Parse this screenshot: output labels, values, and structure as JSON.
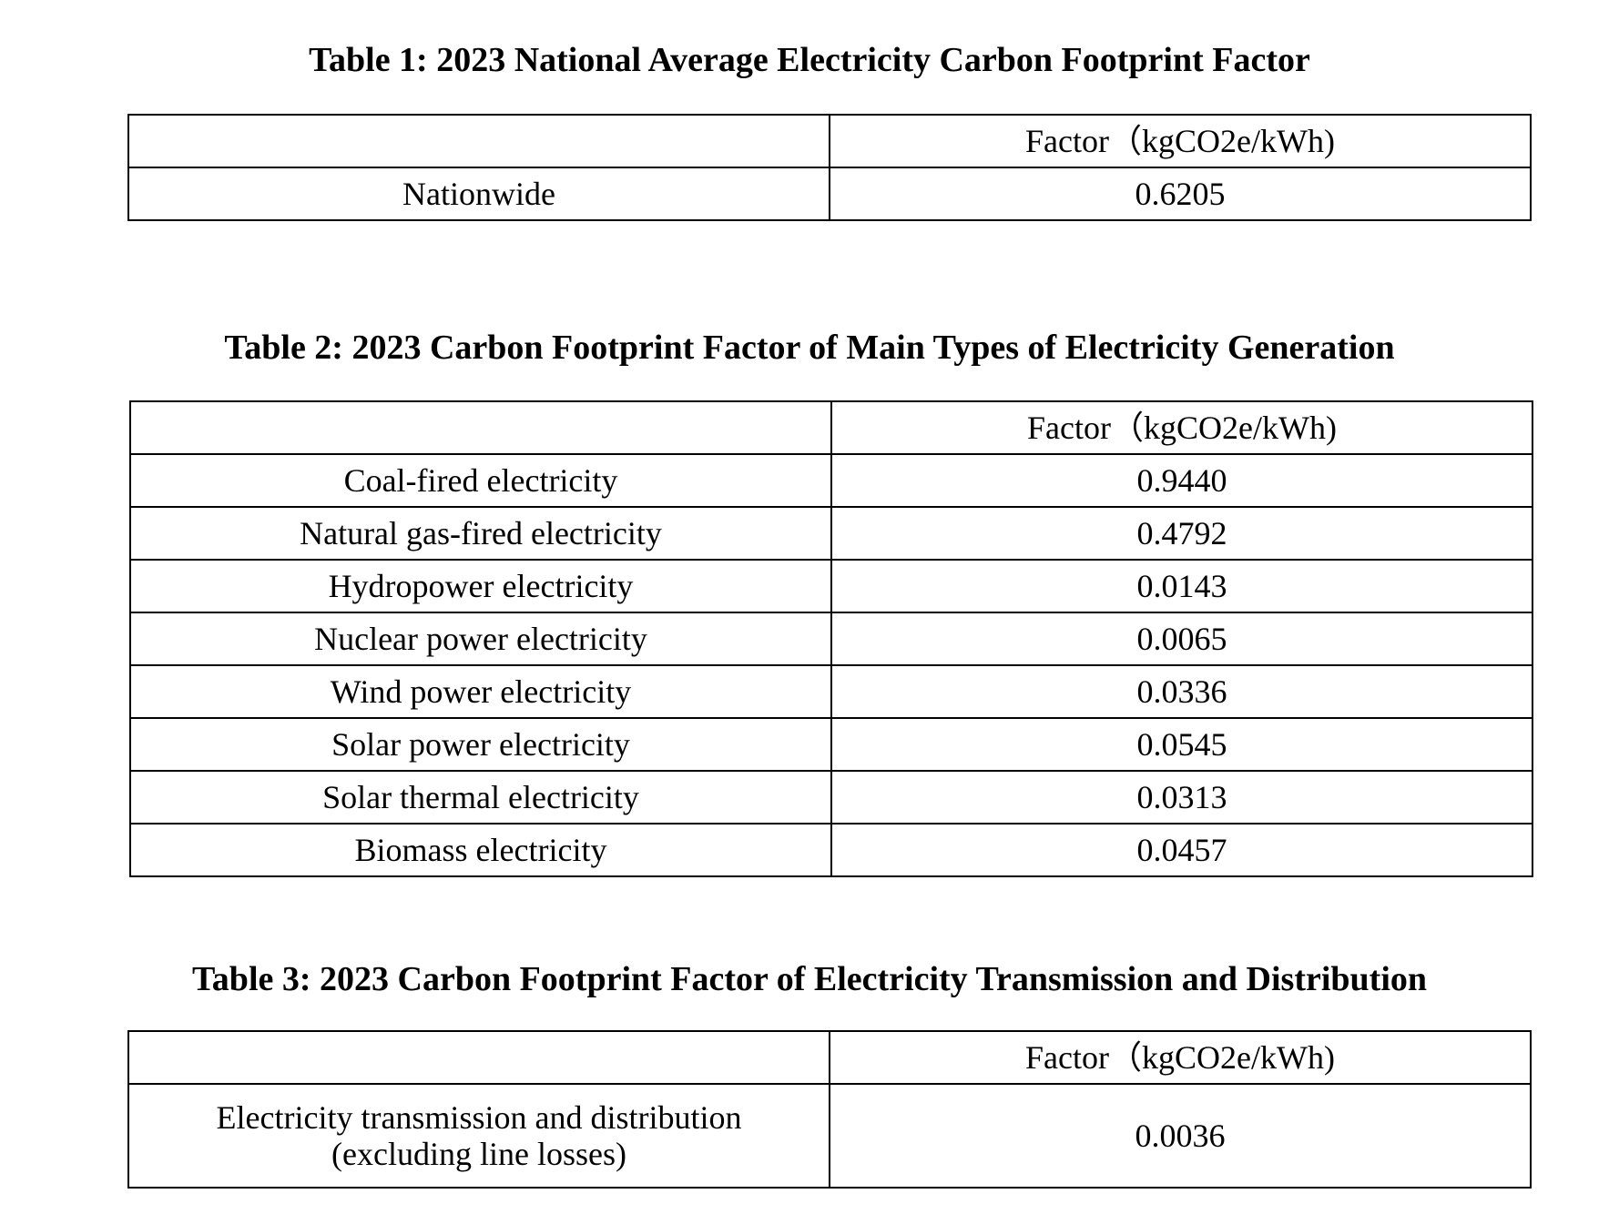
{
  "tables": [
    {
      "title": "Table 1: 2023 National Average Electricity Carbon Footprint Factor",
      "header": {
        "label": "",
        "factor": "Factor（kgCO2e/kWh)"
      },
      "rows": [
        {
          "label": "Nationwide",
          "value": "0.6205"
        }
      ]
    },
    {
      "title": "Table 2: 2023 Carbon Footprint Factor of Main Types of Electricity Generation",
      "header": {
        "label": "",
        "factor": "Factor（kgCO2e/kWh)"
      },
      "rows": [
        {
          "label": "Coal-fired electricity",
          "value": "0.9440"
        },
        {
          "label": "Natural gas-fired electricity",
          "value": "0.4792"
        },
        {
          "label": "Hydropower electricity",
          "value": "0.0143"
        },
        {
          "label": "Nuclear power electricity",
          "value": "0.0065"
        },
        {
          "label": "Wind power electricity",
          "value": "0.0336"
        },
        {
          "label": "Solar power electricity",
          "value": "0.0545"
        },
        {
          "label": "Solar thermal electricity",
          "value": "0.0313"
        },
        {
          "label": "Biomass electricity",
          "value": "0.0457"
        }
      ]
    },
    {
      "title": "Table 3: 2023 Carbon Footprint Factor of Electricity Transmission and Distribution",
      "header": {
        "label": "",
        "factor": "Factor（kgCO2e/kWh)"
      },
      "rows": [
        {
          "label_line1": "Electricity transmission and distribution",
          "label_line2": "(excluding line losses)",
          "value": "0.0036"
        }
      ]
    }
  ]
}
